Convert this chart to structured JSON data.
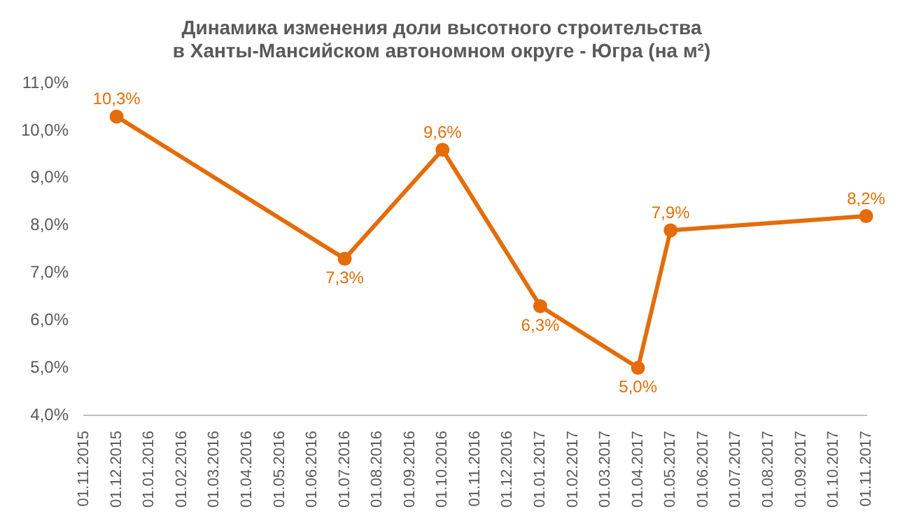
{
  "chart_data": {
    "type": "line",
    "title": "Динамика изменения доли высотного строительства\nв Ханты-Мансийском автономном округе - Югра (на м²)",
    "categories": [
      "01.11.2015",
      "01.12.2015",
      "01.01.2016",
      "01.02.2016",
      "01.03.2016",
      "01.04.2016",
      "01.05.2016",
      "01.06.2016",
      "01.07.2016",
      "01.08.2016",
      "01.09.2016",
      "01.10.2016",
      "01.11.2016",
      "01.12.2016",
      "01.01.2017",
      "01.02.2017",
      "01.03.2017",
      "01.04.2017",
      "01.05.2017",
      "01.06.2017",
      "01.07.2017",
      "01.08.2017",
      "01.09.2017",
      "01.10.2017",
      "01.11.2017"
    ],
    "series": [
      {
        "color": "#e46c0a",
        "values": [
          null,
          10.3,
          null,
          null,
          null,
          null,
          null,
          null,
          7.3,
          null,
          null,
          9.6,
          null,
          null,
          6.3,
          null,
          null,
          5.0,
          7.9,
          null,
          null,
          null,
          null,
          null,
          8.2
        ],
        "value_labels": [
          null,
          "10,3%",
          null,
          null,
          null,
          null,
          null,
          null,
          "7,3%",
          null,
          null,
          "9,6%",
          null,
          null,
          "6,3%",
          null,
          null,
          "5,0%",
          "7,9%",
          null,
          null,
          null,
          null,
          null,
          "8,2%"
        ]
      }
    ],
    "ylim": [
      4,
      11
    ],
    "yticks": [
      {
        "value": 4,
        "label": "4,0%"
      },
      {
        "value": 5,
        "label": "5,0%"
      },
      {
        "value": 6,
        "label": "6,0%"
      },
      {
        "value": 7,
        "label": "7,0%"
      },
      {
        "value": 8,
        "label": "8,0%"
      },
      {
        "value": 9,
        "label": "9,0%"
      },
      {
        "value": 10,
        "label": "10,0%"
      },
      {
        "value": 11,
        "label": "11,0%"
      }
    ],
    "grid": false,
    "legend": false,
    "marker": "circle",
    "line_style": "solid"
  }
}
